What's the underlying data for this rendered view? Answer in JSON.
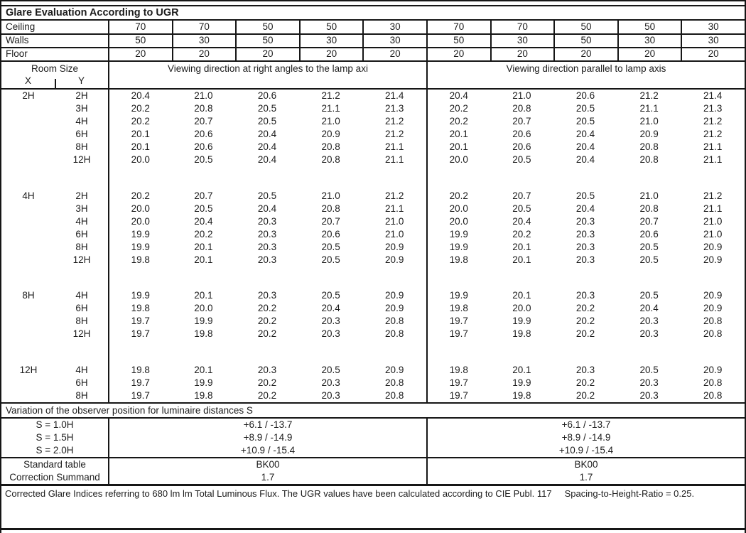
{
  "title": "Glare Evaluation According to UGR",
  "surface": {
    "rows": [
      {
        "label": "Ceiling",
        "values": [
          "70",
          "70",
          "50",
          "50",
          "30",
          "70",
          "70",
          "50",
          "50",
          "30"
        ]
      },
      {
        "label": "Walls",
        "values": [
          "50",
          "30",
          "50",
          "30",
          "30",
          "50",
          "30",
          "50",
          "30",
          "30"
        ]
      },
      {
        "label": "Floor",
        "values": [
          "20",
          "20",
          "20",
          "20",
          "20",
          "20",
          "20",
          "20",
          "20",
          "20"
        ]
      }
    ]
  },
  "header": {
    "room_size_label": "Room Size",
    "x_label": "X",
    "y_label": "Y",
    "left_group_label": "Viewing direction at right angles to the lamp axi",
    "right_group_label": "Viewing direction parallel to lamp axis"
  },
  "blocks": [
    {
      "x": "2H",
      "rows": [
        {
          "y": "2H",
          "values": [
            "20.4",
            "21.0",
            "20.6",
            "21.2",
            "21.4",
            "20.4",
            "21.0",
            "20.6",
            "21.2",
            "21.4"
          ]
        },
        {
          "y": "3H",
          "values": [
            "20.2",
            "20.8",
            "20.5",
            "21.1",
            "21.3",
            "20.2",
            "20.8",
            "20.5",
            "21.1",
            "21.3"
          ]
        },
        {
          "y": "4H",
          "values": [
            "20.2",
            "20.7",
            "20.5",
            "21.0",
            "21.2",
            "20.2",
            "20.7",
            "20.5",
            "21.0",
            "21.2"
          ]
        },
        {
          "y": "6H",
          "values": [
            "20.1",
            "20.6",
            "20.4",
            "20.9",
            "21.2",
            "20.1",
            "20.6",
            "20.4",
            "20.9",
            "21.2"
          ]
        },
        {
          "y": "8H",
          "values": [
            "20.1",
            "20.6",
            "20.4",
            "20.8",
            "21.1",
            "20.1",
            "20.6",
            "20.4",
            "20.8",
            "21.1"
          ]
        },
        {
          "y": "12H",
          "values": [
            "20.0",
            "20.5",
            "20.4",
            "20.8",
            "21.1",
            "20.0",
            "20.5",
            "20.4",
            "20.8",
            "21.1"
          ]
        }
      ]
    },
    {
      "x": "4H",
      "rows": [
        {
          "y": "2H",
          "values": [
            "20.2",
            "20.7",
            "20.5",
            "21.0",
            "21.2",
            "20.2",
            "20.7",
            "20.5",
            "21.0",
            "21.2"
          ]
        },
        {
          "y": "3H",
          "values": [
            "20.0",
            "20.5",
            "20.4",
            "20.8",
            "21.1",
            "20.0",
            "20.5",
            "20.4",
            "20.8",
            "21.1"
          ]
        },
        {
          "y": "4H",
          "values": [
            "20.0",
            "20.4",
            "20.3",
            "20.7",
            "21.0",
            "20.0",
            "20.4",
            "20.3",
            "20.7",
            "21.0"
          ]
        },
        {
          "y": "6H",
          "values": [
            "19.9",
            "20.2",
            "20.3",
            "20.6",
            "21.0",
            "19.9",
            "20.2",
            "20.3",
            "20.6",
            "21.0"
          ]
        },
        {
          "y": "8H",
          "values": [
            "19.9",
            "20.1",
            "20.3",
            "20.5",
            "20.9",
            "19.9",
            "20.1",
            "20.3",
            "20.5",
            "20.9"
          ]
        },
        {
          "y": "12H",
          "values": [
            "19.8",
            "20.1",
            "20.3",
            "20.5",
            "20.9",
            "19.8",
            "20.1",
            "20.3",
            "20.5",
            "20.9"
          ]
        }
      ]
    },
    {
      "x": "8H",
      "rows": [
        {
          "y": "4H",
          "values": [
            "19.9",
            "20.1",
            "20.3",
            "20.5",
            "20.9",
            "19.9",
            "20.1",
            "20.3",
            "20.5",
            "20.9"
          ]
        },
        {
          "y": "6H",
          "values": [
            "19.8",
            "20.0",
            "20.2",
            "20.4",
            "20.9",
            "19.8",
            "20.0",
            "20.2",
            "20.4",
            "20.9"
          ]
        },
        {
          "y": "8H",
          "values": [
            "19.7",
            "19.9",
            "20.2",
            "20.3",
            "20.8",
            "19.7",
            "19.9",
            "20.2",
            "20.3",
            "20.8"
          ]
        },
        {
          "y": "12H",
          "values": [
            "19.7",
            "19.8",
            "20.2",
            "20.3",
            "20.8",
            "19.7",
            "19.8",
            "20.2",
            "20.3",
            "20.8"
          ]
        }
      ]
    },
    {
      "x": "12H",
      "rows": [
        {
          "y": "4H",
          "values": [
            "19.8",
            "20.1",
            "20.3",
            "20.5",
            "20.9",
            "19.8",
            "20.1",
            "20.3",
            "20.5",
            "20.9"
          ]
        },
        {
          "y": "6H",
          "values": [
            "19.7",
            "19.9",
            "20.2",
            "20.3",
            "20.8",
            "19.7",
            "19.9",
            "20.2",
            "20.3",
            "20.8"
          ]
        },
        {
          "y": "8H",
          "values": [
            "19.7",
            "19.8",
            "20.2",
            "20.3",
            "20.8",
            "19.7",
            "19.8",
            "20.2",
            "20.3",
            "20.8"
          ]
        }
      ]
    }
  ],
  "variation": {
    "label": "Variation of the observer position for luminaire distances S",
    "rows": [
      {
        "label": "S = 1.0H",
        "left": "+6.1 / -13.7",
        "right": "+6.1 / -13.7"
      },
      {
        "label": "S = 1.5H",
        "left": "+8.9 / -14.9",
        "right": "+8.9 / -14.9"
      },
      {
        "label": "S = 2.0H",
        "left": "+10.9 / -15.4",
        "right": "+10.9 / -15.4"
      }
    ]
  },
  "summary": {
    "rows": [
      {
        "label": "Standard table",
        "left": "BK00",
        "right": "BK00"
      },
      {
        "label": "Correction Summand",
        "left": "1.7",
        "right": "1.7"
      }
    ]
  },
  "footer_note": "Corrected Glare Indices referring to 680 lm lm Total Luminous Flux. The UGR values have been calculated according to CIE Publ. 117     Spacing-to-Height-Ratio = 0.25.",
  "colors": {
    "border": "#161616",
    "text": "#1c1c1c",
    "background": "#ffffff"
  }
}
